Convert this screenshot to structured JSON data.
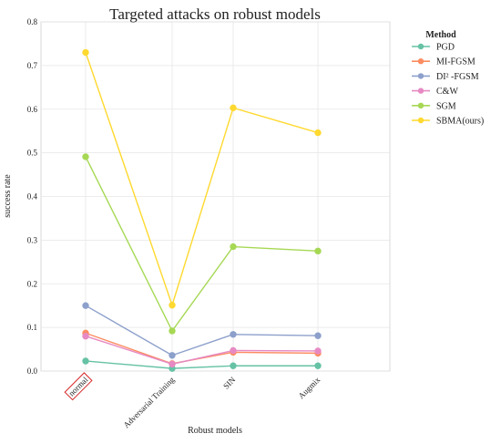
{
  "chart_data": {
    "type": "line",
    "title": "Targeted attacks on robust models",
    "xlabel": "Robust models",
    "ylabel": "success rate",
    "categories": [
      "normal",
      "Adversarial Training",
      "SIN",
      "Augmix"
    ],
    "highlighted_category": "normal",
    "ylim": [
      0,
      0.8
    ],
    "yticks": [
      "0.0",
      "0.1",
      "0.2",
      "0.3",
      "0.4",
      "0.5",
      "0.6",
      "0.7",
      "0.8"
    ],
    "grid": true,
    "legend": {
      "title": "Method",
      "placement": "right"
    },
    "series": [
      {
        "name": "PGD",
        "color": "#66c2a5",
        "values": [
          0.023,
          0.006,
          0.012,
          0.012
        ]
      },
      {
        "name": "MI-FGSM",
        "color": "#fc8d62",
        "values": [
          0.087,
          0.017,
          0.043,
          0.041
        ]
      },
      {
        "name": "DI² -FGSM",
        "color": "#8da0cb",
        "values": [
          0.15,
          0.036,
          0.084,
          0.081
        ]
      },
      {
        "name": "C&W",
        "color": "#e78ac3",
        "values": [
          0.08,
          0.016,
          0.047,
          0.046
        ]
      },
      {
        "name": "SGM",
        "color": "#a6d854",
        "values": [
          0.491,
          0.092,
          0.285,
          0.275
        ]
      },
      {
        "name": "SBMA(ours)",
        "color": "#ffd92f",
        "values": [
          0.73,
          0.151,
          0.603,
          0.546
        ]
      }
    ]
  }
}
